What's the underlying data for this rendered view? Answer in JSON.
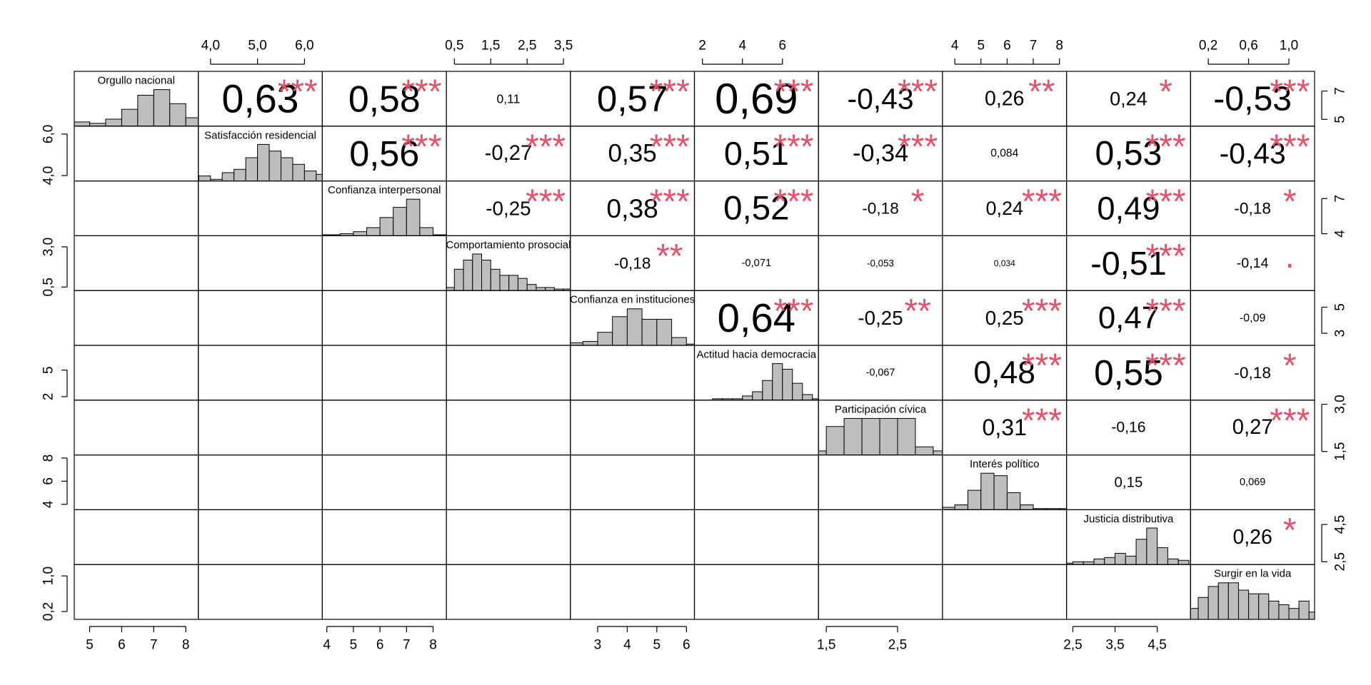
{
  "chart_data": {
    "type": "correlation_matrix",
    "variables": [
      "Orgullo nacional",
      "Satisfacción residencial",
      "Confianza interpersonal",
      "Comportamiento prosocial",
      "Confianza en instituciones",
      "Actitud hacia democracia",
      "Participación cívica",
      "Interés político",
      "Justicia distributiva",
      "Surgir en la vida"
    ],
    "correlations": [
      [
        0.63,
        0.58,
        0.11,
        0.57,
        0.69,
        -0.43,
        0.26,
        0.24,
        -0.53
      ],
      [
        0.56,
        -0.27,
        0.35,
        0.51,
        -0.34,
        0.084,
        0.53,
        -0.43
      ],
      [
        -0.25,
        0.38,
        0.52,
        -0.18,
        0.24,
        0.49,
        -0.18
      ],
      [
        -0.18,
        -0.071,
        -0.053,
        0.034,
        -0.51,
        -0.14
      ],
      [
        0.64,
        -0.25,
        0.25,
        0.47,
        -0.09
      ],
      [
        -0.067,
        0.48,
        0.55,
        -0.18
      ],
      [
        0.31,
        -0.16,
        0.27
      ],
      [
        0.15,
        0.069
      ],
      [
        0.26
      ]
    ],
    "correlation_labels": [
      [
        "0,63",
        "0,58",
        "0,11",
        "0,57",
        "0,69",
        "-0,43",
        "0,26",
        "0,24",
        "-0,53"
      ],
      [
        "0,56",
        "-0,27",
        "0,35",
        "0,51",
        "-0,34",
        "0,084",
        "0,53",
        "-0,43"
      ],
      [
        "-0,25",
        "0,38",
        "0,52",
        "-0,18",
        "0,24",
        "0,49",
        "-0,18"
      ],
      [
        "-0,18",
        "-0,071",
        "-0,053",
        "0,034",
        "-0,51",
        "-0,14"
      ],
      [
        "0,64",
        "-0,25",
        "0,25",
        "0,47",
        "-0,09"
      ],
      [
        "-0,067",
        "0,48",
        "0,55",
        "-0,18"
      ],
      [
        "0,31",
        "-0,16",
        "0,27"
      ],
      [
        "0,15",
        "0,069"
      ],
      [
        "0,26"
      ]
    ],
    "significance": [
      [
        "***",
        "***",
        null,
        "***",
        "***",
        "***",
        "**",
        "*",
        "***"
      ],
      [
        "***",
        "***",
        "***",
        "***",
        "***",
        null,
        "***",
        "***"
      ],
      [
        "***",
        "***",
        "***",
        "*",
        "***",
        "***",
        "*"
      ],
      [
        "**",
        null,
        null,
        null,
        "***",
        "."
      ],
      [
        "***",
        "**",
        "***",
        "***",
        null
      ],
      [
        null,
        "***",
        "***",
        "*"
      ],
      [
        "***",
        null,
        "***"
      ],
      [
        null,
        null
      ],
      [
        "*"
      ]
    ],
    "star_color": "#df536b",
    "hist_color": "#bebebe",
    "ranges": [
      [
        4.52,
        8.39
      ],
      [
        3.74,
        6.38
      ],
      [
        3.83,
        8.5
      ],
      [
        0.28,
        3.69
      ],
      [
        2.08,
        6.27
      ],
      [
        1.6,
        7.8
      ],
      [
        1.39,
        3.13
      ],
      [
        3.53,
        8.27
      ],
      [
        2.35,
        5.29
      ],
      [
        0.024,
        1.255
      ]
    ],
    "xticks": [
      [
        5,
        6,
        7,
        8
      ],
      [
        {
          "value": 4,
          "label": "4,0"
        },
        {
          "value": 5,
          "label": "5,0"
        },
        {
          "value": 6,
          "label": "6,0"
        }
      ],
      [
        4,
        5,
        6,
        7,
        8
      ],
      [
        {
          "value": 0.5,
          "label": "0,5"
        },
        {
          "value": 1.5,
          "label": "1,5"
        },
        {
          "value": 2.5,
          "label": "2,5"
        },
        {
          "value": 3.5,
          "label": "3,5"
        }
      ],
      [
        3,
        4,
        5,
        6
      ],
      [
        2,
        4,
        6
      ],
      [
        {
          "value": 1.5,
          "label": "1,5"
        },
        {
          "value": 2.5,
          "label": "2,5"
        }
      ],
      [
        4,
        5,
        6,
        7,
        8
      ],
      [
        {
          "value": 2.5,
          "label": "2,5"
        },
        {
          "value": 3.5,
          "label": "3,5"
        },
        {
          "value": 4.5,
          "label": "4,5"
        }
      ],
      [
        {
          "value": 0.2,
          "label": "0,2"
        },
        {
          "value": 0.6,
          "label": "0,6"
        },
        {
          "value": 1.0,
          "label": "1,0"
        }
      ]
    ],
    "yticks": [
      [
        5,
        7
      ],
      [
        {
          "value": 4,
          "label": "4,0"
        },
        {
          "value": 6,
          "label": "6,0"
        }
      ],
      [
        4,
        7
      ],
      [
        {
          "value": 0.5,
          "label": "0,5"
        },
        {
          "value": 3.0,
          "label": "3,0"
        }
      ],
      [
        3,
        5
      ],
      [
        2,
        5
      ],
      [
        {
          "value": 1.5,
          "label": "1,5"
        },
        {
          "value": 3.0,
          "label": "3,0"
        }
      ],
      [
        4,
        6,
        8
      ],
      [
        {
          "value": 2.5,
          "label": "2,5"
        },
        {
          "value": 4.5,
          "label": "4,5"
        }
      ],
      [
        {
          "value": 0.2,
          "label": "0,2"
        },
        {
          "value": 1.0,
          "label": "1,0"
        }
      ]
    ],
    "histograms": [
      {
        "bins": [
          4.5,
          5,
          5.5,
          6,
          6.5,
          7,
          7.5,
          8,
          8.5
        ],
        "counts": [
          3,
          2,
          5,
          12,
          22,
          26,
          16,
          6
        ]
      },
      {
        "bins": [
          3.75,
          4,
          4.25,
          4.5,
          4.75,
          5,
          5.25,
          5.5,
          5.75,
          6,
          6.25,
          6.5
        ],
        "counts": [
          3,
          1,
          5,
          7,
          14,
          22,
          18,
          14,
          10,
          6,
          4
        ]
      },
      {
        "bins": [
          3.5,
          4,
          4.5,
          5,
          5.5,
          6,
          6.5,
          7,
          7.5,
          8,
          8.5
        ],
        "counts": [
          1,
          1,
          2,
          4,
          8,
          18,
          28,
          36,
          8,
          1
        ]
      },
      {
        "bins": [
          0.25,
          0.5,
          0.75,
          1,
          1.25,
          1.5,
          1.75,
          2,
          2.25,
          2.5,
          2.75,
          3,
          3.25,
          3.5,
          3.75
        ],
        "counts": [
          2,
          14,
          20,
          24,
          20,
          14,
          10,
          10,
          8,
          4,
          2,
          2,
          1,
          1
        ]
      },
      {
        "bins": [
          2,
          2.5,
          3,
          3.5,
          4,
          4.5,
          5,
          5.5,
          6,
          6.5
        ],
        "counts": [
          2,
          3,
          10,
          22,
          28,
          20,
          20,
          6,
          1
        ]
      },
      {
        "bins": [
          1.5,
          2,
          2.5,
          3,
          3.5,
          4,
          4.5,
          5,
          5.5,
          6,
          6.5,
          7,
          7.5,
          8
        ],
        "counts": [
          0,
          0,
          1,
          1,
          1,
          3,
          6,
          14,
          26,
          22,
          12,
          4,
          1
        ]
      },
      {
        "bins": [
          1.25,
          1.5,
          1.75,
          2,
          2.25,
          2.5,
          2.75,
          3,
          3.25
        ],
        "counts": [
          2,
          14,
          18,
          18,
          18,
          18,
          4,
          2
        ]
      },
      {
        "bins": [
          3.5,
          4,
          4.5,
          5,
          5.5,
          6,
          6.5,
          7,
          7.5,
          8,
          8.5
        ],
        "counts": [
          2,
          4,
          16,
          30,
          28,
          14,
          4,
          1,
          1,
          1
        ]
      },
      {
        "bins": [
          2.25,
          2.5,
          2.75,
          3,
          3.25,
          3.5,
          3.75,
          4,
          4.25,
          4.5,
          4.75,
          5,
          5.25
        ],
        "counts": [
          1,
          2,
          2,
          4,
          5,
          8,
          6,
          18,
          26,
          12,
          4,
          3
        ]
      },
      {
        "bins": [
          0,
          0.1,
          0.2,
          0.3,
          0.4,
          0.5,
          0.6,
          0.7,
          0.8,
          0.9,
          1,
          1.1,
          1.2,
          1.3
        ],
        "counts": [
          6,
          12,
          18,
          20,
          20,
          16,
          14,
          14,
          10,
          8,
          6,
          10,
          4
        ]
      }
    ]
  }
}
